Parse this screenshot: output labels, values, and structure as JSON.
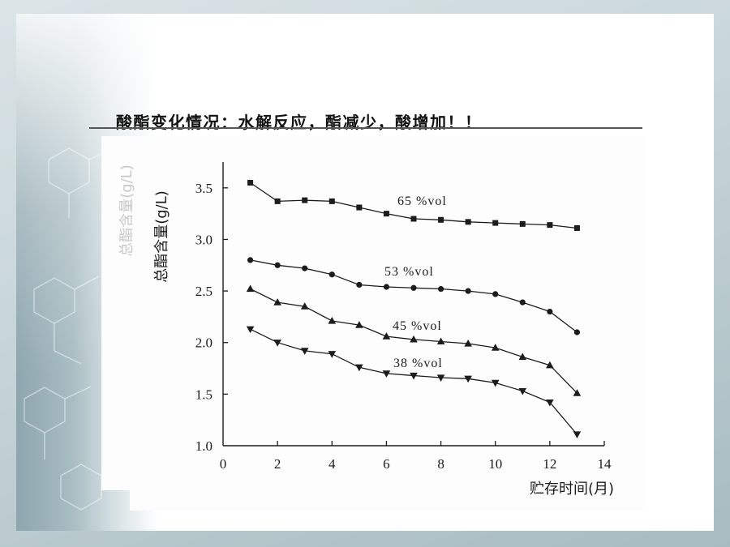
{
  "slide": {
    "heading": "酸酯变化情况：水解反应，酯减少，酸增加！！"
  },
  "colors": {
    "chart_ink": "#1c1c1c",
    "heading_rule": "#555555",
    "heading_text": "#111111"
  },
  "chart_data": {
    "type": "line",
    "xlabel": "贮存时间(月)",
    "ylabel": "总酯含量(g/L)",
    "xlim": [
      0,
      14
    ],
    "ylim": [
      1.0,
      3.75
    ],
    "xticks": [
      0,
      2,
      4,
      6,
      8,
      10,
      12,
      14
    ],
    "yticks": [
      "1.0",
      "1.5",
      "2.0",
      "2.5",
      "3.0",
      "3.5"
    ],
    "x": [
      1,
      2,
      3,
      4,
      5,
      6,
      7,
      8,
      9,
      10,
      11,
      12,
      13
    ],
    "series": [
      {
        "name": "65 %vol",
        "marker": "square",
        "values": [
          3.55,
          3.37,
          3.38,
          3.37,
          3.31,
          3.25,
          3.2,
          3.19,
          3.17,
          3.16,
          3.15,
          3.14,
          3.11
        ]
      },
      {
        "name": "53 %vol",
        "marker": "circle",
        "values": [
          2.8,
          2.75,
          2.72,
          2.66,
          2.56,
          2.54,
          2.53,
          2.52,
          2.5,
          2.47,
          2.39,
          2.3,
          2.1
        ]
      },
      {
        "name": "45 %vol",
        "marker": "triangle-up",
        "values": [
          2.52,
          2.39,
          2.35,
          2.21,
          2.17,
          2.06,
          2.03,
          2.01,
          1.99,
          1.95,
          1.86,
          1.78,
          1.51
        ]
      },
      {
        "name": "38 %vol",
        "marker": "triangle-down",
        "values": [
          2.13,
          2.0,
          1.92,
          1.89,
          1.76,
          1.7,
          1.68,
          1.66,
          1.65,
          1.61,
          1.53,
          1.42,
          1.11
        ]
      }
    ],
    "grid": false,
    "legend_placement": "inline"
  }
}
